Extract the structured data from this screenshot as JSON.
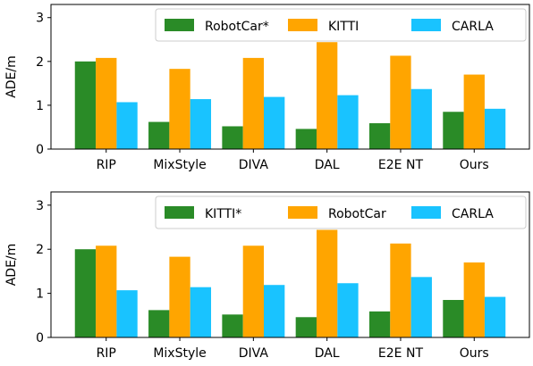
{
  "chart_data": [
    {
      "type": "bar",
      "categories": [
        "RIP",
        "MixStyle",
        "DIVA",
        "DAL",
        "E2E NT",
        "Ours"
      ],
      "ylabel": "ADE/m",
      "xlabel": "",
      "ylim": [
        0,
        3.3
      ],
      "yticks": [
        0,
        1,
        2,
        3
      ],
      "legend": "top-right",
      "series": [
        {
          "name": "RobotCar*",
          "color": "#2a8b27",
          "values": [
            2.0,
            0.62,
            0.52,
            0.46,
            0.59,
            0.85
          ]
        },
        {
          "name": "KITTI",
          "color": "#ffa500",
          "values": [
            2.08,
            1.83,
            2.08,
            2.44,
            2.13,
            1.7
          ]
        },
        {
          "name": "CARLA",
          "color": "#19c3ff",
          "values": [
            1.07,
            1.14,
            1.19,
            1.23,
            1.37,
            0.92
          ]
        }
      ]
    },
    {
      "type": "bar",
      "categories": [
        "RIP",
        "MixStyle",
        "DIVA",
        "DAL",
        "E2E NT",
        "Ours"
      ],
      "ylabel": "ADE/m",
      "xlabel": "",
      "ylim": [
        0,
        3.3
      ],
      "yticks": [
        0,
        1,
        2,
        3
      ],
      "legend": "top-right",
      "series": [
        {
          "name": "KITTI*",
          "color": "#2a8b27",
          "values": [
            2.0,
            0.62,
            0.52,
            0.46,
            0.59,
            0.85
          ]
        },
        {
          "name": "RobotCar",
          "color": "#ffa500",
          "values": [
            2.08,
            1.83,
            2.08,
            2.44,
            2.13,
            1.7
          ]
        },
        {
          "name": "CARLA",
          "color": "#19c3ff",
          "values": [
            1.07,
            1.14,
            1.19,
            1.23,
            1.37,
            0.92
          ]
        }
      ]
    }
  ]
}
